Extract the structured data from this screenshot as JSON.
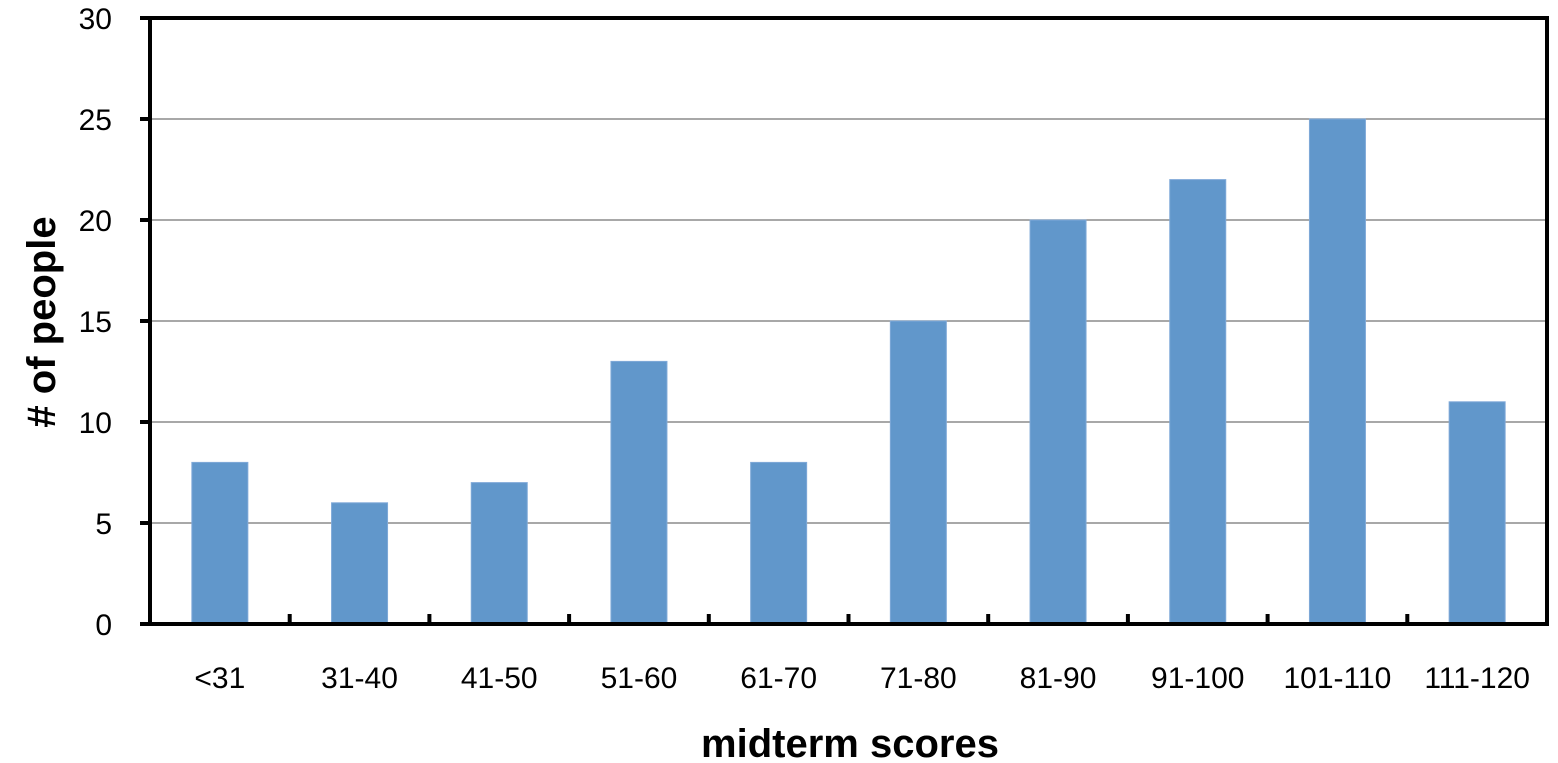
{
  "chart_data": {
    "type": "bar",
    "title": "",
    "xlabel": "midterm scores",
    "ylabel": "# of people",
    "categories": [
      "<31",
      "31-40",
      "41-50",
      "51-60",
      "61-70",
      "71-80",
      "81-90",
      "91-100",
      "101-110",
      "111-120"
    ],
    "values": [
      8,
      6,
      7,
      13,
      8,
      15,
      20,
      22,
      25,
      11
    ],
    "ylim": [
      0,
      30
    ],
    "yticks": [
      "0",
      "5",
      "10",
      "15",
      "20",
      "25",
      "30"
    ],
    "grid": "horizontal",
    "legend": "none",
    "colors": {
      "bar": "#6197cb",
      "gridline": "#8c8c8c",
      "axis": "#000000"
    }
  }
}
